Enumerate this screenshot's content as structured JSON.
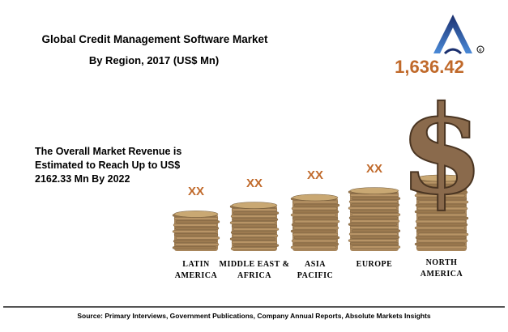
{
  "chart_data": {
    "type": "bar",
    "title": "Global Credit Management Software Market",
    "subtitle": "By Region, 2017 (US$ Mn)",
    "categories": [
      [
        "LATIN",
        "AMERICA"
      ],
      [
        "MIDDLE EAST &",
        "AFRICA"
      ],
      [
        "ASIA",
        "PACIFIC"
      ],
      [
        "EUROPE"
      ],
      [
        "NORTH",
        "AMERICA"
      ]
    ],
    "value_labels": [
      "XX",
      "XX",
      "XX",
      "XX",
      "1,636.42"
    ],
    "values": [
      null,
      null,
      null,
      null,
      1636.42
    ],
    "relative_heights": [
      0.38,
      0.47,
      0.55,
      0.62,
      0.75
    ],
    "annotation": "The Overall Market Revenue is Estimated to Reach Up to US$ 2162.33 Mn By 2022",
    "source": "Source: Primary Interviews, Government Publications, Company Annual Reports, Absolute Markets Insights",
    "highlight_symbol": "$",
    "colors": {
      "value_label": "#c0692a",
      "coin": "#a8865c",
      "coin_dark": "#6e5535",
      "dollar": "#8a6a4c",
      "logo": "#3a5fb0"
    }
  }
}
